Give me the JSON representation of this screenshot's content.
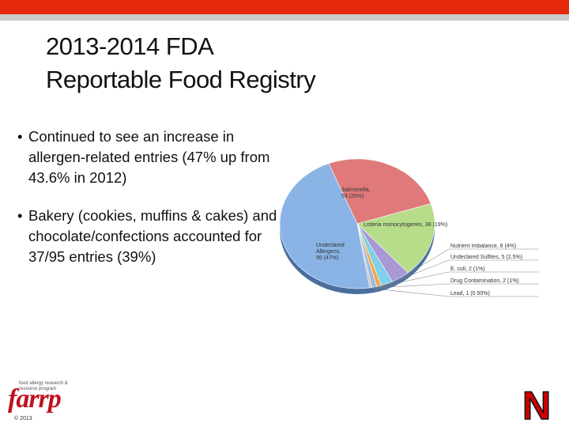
{
  "header": {
    "bar_color": "#e8280b"
  },
  "title": {
    "line1": "2013-2014 FDA",
    "line2": "Reportable Food Registry"
  },
  "bullets": [
    "Continued to see an increase in allergen-related entries (47% up from 43.6% in 2012)",
    "Bakery (cookies, muffins & cakes) and chocolate/confections accounted for 37/95 entries (39%)"
  ],
  "chart_data": {
    "type": "pie",
    "slices": [
      {
        "label": "Undeclared Allergens, 95 (47%)",
        "value": 95,
        "percent": 47,
        "color": "#8ab4e6"
      },
      {
        "label": "Salmonella, 53 (26%)",
        "value": 53,
        "percent": 26,
        "color": "#e07a7a"
      },
      {
        "label": "Listeria monocytogenes, 38 (19%)",
        "value": 38,
        "percent": 19,
        "color": "#b7dc8a"
      },
      {
        "label": "Nutrient Imbalance, 8 (4%)",
        "value": 8,
        "percent": 4,
        "color": "#a898d6"
      },
      {
        "label": "Undeclared Sulfites, 5 (2.5%)",
        "value": 5,
        "percent": 2.5,
        "color": "#7fd0e8"
      },
      {
        "label": "E. coli, 2 (1%)",
        "value": 2,
        "percent": 1,
        "color": "#f0a84a"
      },
      {
        "label": "Drug Contamination, 2 (1%)",
        "value": 2,
        "percent": 1,
        "color": "#9bb7e0"
      },
      {
        "label": "Lead, 1 (0.50%)",
        "value": 1,
        "percent": 0.5,
        "color": "#c4c4c4"
      }
    ]
  },
  "footer": {
    "logo_text": "farrp",
    "tagline": "food allergy research & resource program",
    "copyright": "© 2013",
    "university_mark": "N"
  }
}
